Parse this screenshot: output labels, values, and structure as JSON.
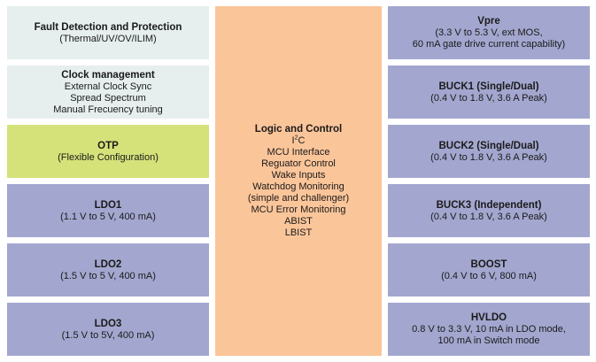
{
  "colors": {
    "light_block": "#e6eeee",
    "otp_block": "#d5e27a",
    "ldo_buck_block": "#a3a7cf",
    "logic_block": "#fbc59a"
  },
  "left": {
    "fault": {
      "title": "Fault Detection and Protection",
      "lines": [
        "(Thermal/UV/OV/ILIM)"
      ]
    },
    "clock": {
      "title": "Clock management",
      "lines": [
        "External Clock Sync",
        "Spread Spectrum",
        "Manual Frecuency tuning"
      ]
    },
    "otp": {
      "title": "OTP",
      "lines": [
        "(Flexible Configuration)"
      ]
    },
    "ldo1": {
      "title": "LDO1",
      "lines": [
        "(1.1 V to 5 V, 400 mA)"
      ]
    },
    "ldo2": {
      "title": "LDO2",
      "lines": [
        "(1.5 V to 5 V, 400 mA)"
      ]
    },
    "ldo3": {
      "title": "LDO3",
      "lines": [
        "(1.5 V to 5V, 400 mA)"
      ]
    }
  },
  "center": {
    "title": "Logic and Control",
    "i2c_base": "I",
    "i2c_sup": "2",
    "i2c_end": "C",
    "lines": [
      "MCU Interface",
      "Reguator Control",
      "Wake Inputs",
      "Watchdog Monitoring",
      "(simple and challenger)",
      "MCU Error Monitoring",
      "ABIST",
      "LBIST"
    ]
  },
  "right": {
    "vpre": {
      "title": "Vpre",
      "lines": [
        "(3.3 V to 5.3 V, ext MOS,",
        "60 mA gate drive current capability)"
      ]
    },
    "buck1": {
      "title": "BUCK1 (Single/Dual)",
      "lines": [
        "(0.4 V to 1.8 V, 3.6 A Peak)"
      ]
    },
    "buck2": {
      "title": "BUCK2 (Single/Dual)",
      "lines": [
        "(0.4 V to 1.8 V, 3.6 A Peak)"
      ]
    },
    "buck3": {
      "title": "BUCK3 (Independent)",
      "lines": [
        "(0.4 V to 1.8 V, 3.6 A Peak)"
      ]
    },
    "boost": {
      "title": "BOOST",
      "lines": [
        "(0.4 V to 6 V, 800 mA)"
      ]
    },
    "hvldo": {
      "title": "HVLDO",
      "lines": [
        "0.8 V to 3.3 V, 10 mA in LDO mode,",
        "100 mA in Switch mode"
      ]
    }
  }
}
